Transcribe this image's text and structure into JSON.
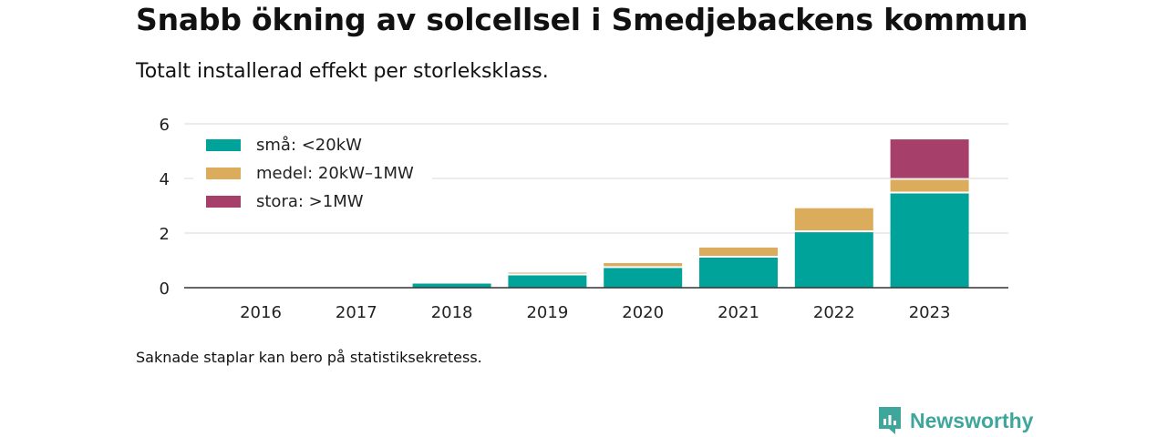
{
  "title": "Snabb ökning av solcellsel i Smedjebackens kommun",
  "subtitle": "Totalt installerad effekt per storleksklass.",
  "footnote": "Saknade staplar kan bero på statistiksekretess.",
  "brand": {
    "name": "Newsworthy",
    "color": "#3fa69b"
  },
  "chart_data": {
    "type": "bar",
    "stacked": true,
    "categories": [
      "2016",
      "2017",
      "2018",
      "2019",
      "2020",
      "2021",
      "2022",
      "2023"
    ],
    "series": [
      {
        "name": "små: <20kW",
        "color": "#00a39a",
        "values": [
          0.0,
          0.0,
          0.15,
          0.45,
          0.72,
          1.1,
          2.03,
          3.45
        ]
      },
      {
        "name": "medel: 20kW–1MW",
        "color": "#dbac5c",
        "values": [
          0.0,
          0.0,
          0.0,
          0.1,
          0.18,
          0.37,
          0.88,
          0.5
        ]
      },
      {
        "name": "stora: >1MW",
        "color": "#a6406a",
        "values": [
          0.0,
          0.0,
          0.0,
          0.0,
          0.0,
          0.0,
          0.0,
          1.48
        ]
      }
    ],
    "yticks": [
      0,
      2,
      4,
      6
    ],
    "ylim": [
      0,
      6
    ],
    "xlabel": "",
    "ylabel": "",
    "grid": true,
    "legend_position": "top-left"
  }
}
